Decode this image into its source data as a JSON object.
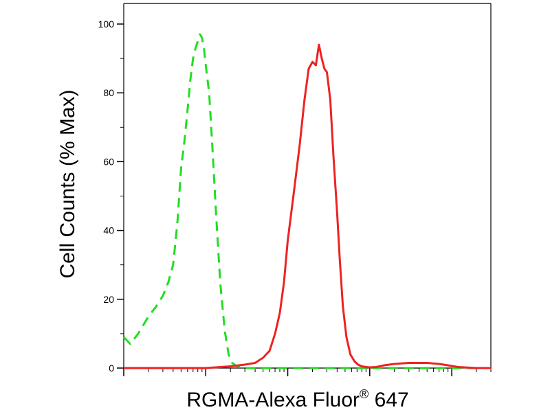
{
  "chart_data": {
    "type": "line",
    "xlabel": "RGMA-Alexa Fluor",
    "xlabel_superscript": "®",
    "xlabel_suffix": " 647",
    "ylabel": "Cell Counts (% Max)",
    "ylim": [
      0,
      100
    ],
    "y_ticks": [
      "0",
      "20",
      "40",
      "60",
      "80",
      "100"
    ],
    "x_scale": "log",
    "xlim": [
      0.1,
      3000
    ],
    "x_major_ticks": [
      1,
      10,
      100,
      1000
    ],
    "grid": false,
    "legend": "none",
    "series": [
      {
        "color": "#22dd22",
        "style": "dashed",
        "x": [
          0.1,
          0.12,
          0.15,
          0.2,
          0.25,
          0.3,
          0.35,
          0.4,
          0.45,
          0.5,
          0.55,
          0.6,
          0.65,
          0.7,
          0.75,
          0.8,
          0.85,
          0.9,
          0.95,
          1.0,
          1.1,
          1.2,
          1.35,
          1.5,
          1.7,
          1.9,
          2.1,
          2.4,
          2.8,
          3.2,
          3.8,
          5,
          10,
          100,
          1000,
          3000
        ],
        "values": [
          9,
          7,
          10,
          15,
          18,
          21,
          25,
          30,
          42,
          58,
          66,
          75,
          84,
          90,
          93,
          95,
          97,
          96,
          93,
          88,
          80,
          65,
          43,
          25,
          11,
          4,
          1.5,
          0.5,
          0,
          0,
          0,
          0,
          0,
          0,
          0,
          0
        ]
      },
      {
        "color": "#ee2222",
        "style": "solid",
        "x": [
          0.1,
          1,
          2,
          3,
          4,
          5,
          6,
          7,
          8,
          9,
          10,
          12,
          14,
          16,
          18,
          20,
          22,
          24,
          26,
          28,
          30,
          33,
          36,
          40,
          43,
          47,
          52,
          58,
          65,
          72,
          80,
          90,
          100,
          120,
          150,
          200,
          300,
          500,
          700,
          900,
          1200,
          2000,
          3000
        ],
        "values": [
          0,
          0,
          0.5,
          1,
          1.5,
          3,
          5,
          10,
          16,
          25,
          37,
          52,
          65,
          78,
          87,
          89,
          88,
          94,
          90,
          87,
          86,
          78,
          62,
          45,
          32,
          18,
          9,
          4,
          2,
          1,
          0.5,
          0.3,
          0.2,
          0.3,
          0.8,
          1.2,
          1.5,
          1.5,
          1.2,
          0.8,
          0.3,
          0,
          0
        ]
      }
    ]
  }
}
